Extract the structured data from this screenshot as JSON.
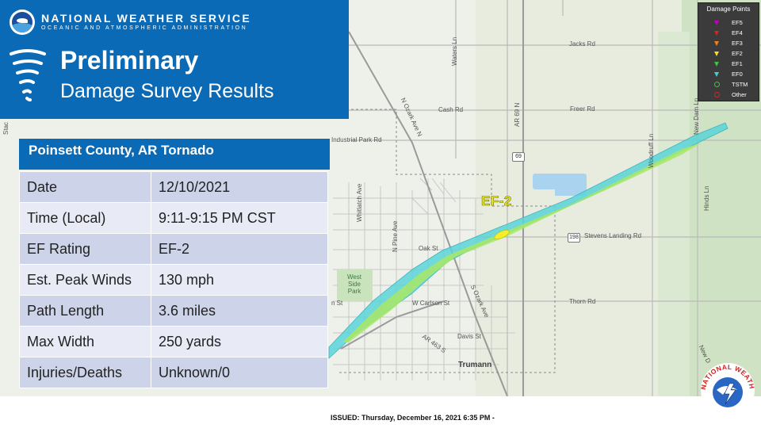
{
  "header": {
    "agency": "NATIONAL WEATHER SERVICE",
    "subagency": "OCEANIC AND ATMOSPHERIC ADMINISTRATION",
    "title": "Preliminary",
    "subtitle": "Damage Survey Results"
  },
  "event": {
    "heading": "Poinsett County,  AR Tornado",
    "rows": [
      {
        "label": "Date",
        "value": "12/10/2021"
      },
      {
        "label": "Time (Local)",
        "value": "9:11-9:15 PM CST"
      },
      {
        "label": "EF Rating",
        "value": "EF-2"
      },
      {
        "label": "Est. Peak Winds",
        "value": "130 mph"
      },
      {
        "label": "Path Length",
        "value": "3.6 miles"
      },
      {
        "label": "Max Width",
        "value": "250 yards"
      },
      {
        "label": "Injuries/Deaths",
        "value": "Unknown/0"
      }
    ]
  },
  "legend": {
    "title": "Damage Points",
    "items": [
      {
        "label": "EF5",
        "color": "#c000c0",
        "shape": "triangle"
      },
      {
        "label": "EF4",
        "color": "#e02020",
        "shape": "triangle"
      },
      {
        "label": "EF3",
        "color": "#f08020",
        "shape": "triangle"
      },
      {
        "label": "EF2",
        "color": "#f0e020",
        "shape": "triangle"
      },
      {
        "label": "EF1",
        "color": "#40c040",
        "shape": "triangle"
      },
      {
        "label": "EF0",
        "color": "#40d0d0",
        "shape": "triangle"
      },
      {
        "label": "TSTM",
        "color": "#40c040",
        "shape": "circle"
      },
      {
        "label": "Other",
        "color": "#e02020",
        "shape": "circle"
      }
    ]
  },
  "map": {
    "ef_label": "EF-2",
    "roads": {
      "jacks": "Jacks Rd",
      "freer": "Freer Rd",
      "cash": "Cash Rd",
      "industrial": "Industrial Park Rd",
      "oak": "Oak St",
      "stevens": "Stevens Landing Rd",
      "carlson": "W Carlson St",
      "carlson_left": "n St",
      "thorn": "Thorn Rd",
      "davis": "Davis St",
      "waters": "Waters Ln",
      "ar69": "AR 69 N",
      "ozark_n": "N Ozark Ave N",
      "ozark_s": "S Ozark Ave",
      "pine": "N Pine Ave",
      "whitlatch": "Whitlatch Ave",
      "woodruff": "Woodruff Ln",
      "newdam": "New Dam Ln",
      "hinds": "Hinds Ln",
      "ar463": "AR 463 S",
      "stac": "Stac",
      "newd_bottom": "New D"
    },
    "shield_69": "69",
    "shield_198": "198",
    "town": "Trumann",
    "park": "West Side Park"
  },
  "footer": {
    "issued": "ISSUED: Thursday, December 16, 2021 6:35 PM -"
  },
  "seal": {
    "text": "NATIONAL WEATHER SERVICE"
  }
}
